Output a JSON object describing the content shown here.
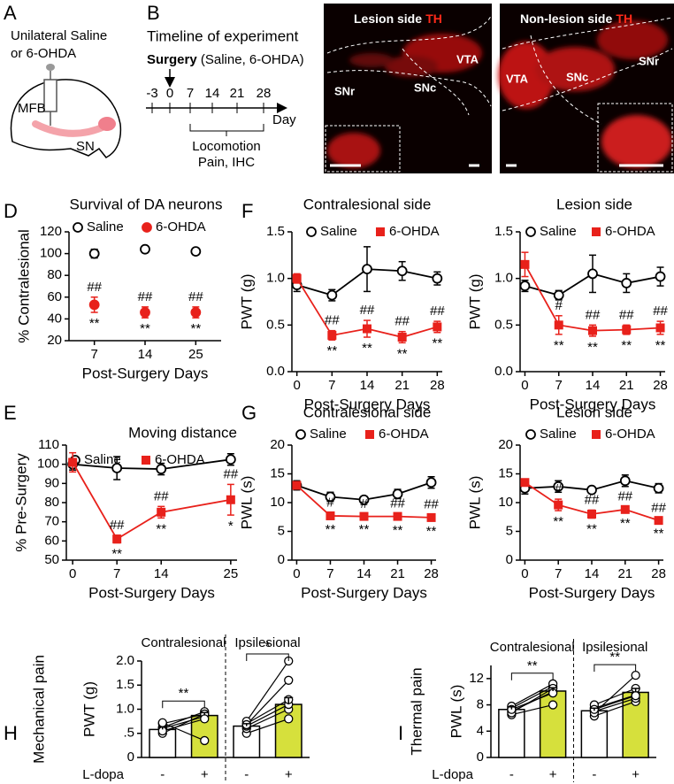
{
  "diagrams": {
    "a": {
      "panel": "A",
      "lines": [
        "Unilateral Saline",
        "or 6-OHDA"
      ],
      "labels": [
        "MFB",
        "SN"
      ]
    },
    "b": {
      "panel": "B",
      "title": "Timeline of experiment",
      "event_label": "Surgery",
      "event_detail": "(Saline, 6-OHDA)",
      "ticks": [
        "-3",
        "0",
        "7",
        "14",
        "21",
        "28"
      ],
      "axis_label": "Day",
      "phase_lines": [
        "Locomotion",
        "Pain, IHC"
      ]
    },
    "c": {
      "panel": "C",
      "images": [
        {
          "title": "Lesion side",
          "stain": "TH",
          "regions": [
            "SNr",
            "SNc",
            "VTA"
          ]
        },
        {
          "title": "Non-lesion side",
          "stain": "TH",
          "regions": [
            "VTA",
            "SNc",
            "SNr"
          ]
        }
      ]
    }
  },
  "chart_data": [
    {
      "type": "scatter",
      "panel": "D",
      "title": "Survival of DA neurons",
      "ylabel": "% Contralesional",
      "xlabel": "Post-Surgery Days",
      "categories": [
        "7",
        "14",
        "25"
      ],
      "ylim": [
        20,
        120
      ],
      "yticks": [
        20,
        40,
        60,
        80,
        100,
        120
      ],
      "series": [
        {
          "name": "Saline",
          "color": "#000000",
          "marker": "circle-open",
          "values": [
            100,
            104,
            102
          ],
          "errors": [
            4,
            3,
            3
          ]
        },
        {
          "name": "6-OHDA",
          "color": "#e8211b",
          "marker": "circle",
          "values": [
            53,
            46,
            46
          ],
          "errors": [
            7,
            5,
            5
          ],
          "upper_labels": [
            "##",
            "##",
            "##"
          ],
          "lower_labels": [
            "**",
            "**",
            "**"
          ]
        }
      ]
    },
    {
      "type": "line",
      "panel": "F",
      "title": "Contralesional side",
      "ylabel": "PWT (g)",
      "xlabel": "Post-Surgery Days",
      "x": [
        0,
        7,
        14,
        21,
        28
      ],
      "xlim": [
        -1,
        29
      ],
      "xticks": [
        0,
        7,
        14,
        21,
        28
      ],
      "ylim": [
        0,
        1.5
      ],
      "yticks": [
        {
          "value": 0,
          "label": "0.0"
        },
        0.5,
        {
          "value": 1,
          "label": "1.0"
        },
        1.5
      ],
      "series": [
        {
          "name": "Saline",
          "color": "#000000",
          "marker": "circle-open",
          "values": [
            0.93,
            0.82,
            1.1,
            1.08,
            1.0
          ],
          "errors": [
            0.07,
            0.06,
            0.24,
            0.1,
            0.07
          ]
        },
        {
          "name": "6-OHDA",
          "color": "#e8211b",
          "marker": "square",
          "values": [
            1.0,
            0.39,
            0.46,
            0.37,
            0.48
          ],
          "errors": [
            0.05,
            0.05,
            0.09,
            0.06,
            0.06
          ],
          "upper_labels": [
            null,
            "##",
            "##",
            "##",
            "##"
          ],
          "lower_labels": [
            null,
            "**",
            "**",
            "**",
            "**"
          ]
        }
      ]
    },
    {
      "type": "line",
      "title": "Lesion side",
      "ylabel": "PWT (g)",
      "xlabel": "Post-Surgery Days",
      "x": [
        0,
        7,
        14,
        21,
        28
      ],
      "xlim": [
        -1,
        29
      ],
      "xticks": [
        0,
        7,
        14,
        21,
        28
      ],
      "ylim": [
        0,
        1.5
      ],
      "yticks": [
        {
          "value": 0,
          "label": "0.0"
        },
        0.5,
        {
          "value": 1,
          "label": "1.0"
        },
        1.5
      ],
      "series": [
        {
          "name": "Saline",
          "color": "#000000",
          "marker": "circle-open",
          "values": [
            0.92,
            0.82,
            1.05,
            0.95,
            1.02
          ],
          "errors": [
            0.06,
            0.05,
            0.2,
            0.1,
            0.1
          ]
        },
        {
          "name": "6-OHDA",
          "color": "#e8211b",
          "marker": "square",
          "values": [
            1.15,
            0.5,
            0.44,
            0.45,
            0.47
          ],
          "errors": [
            0.13,
            0.1,
            0.06,
            0.05,
            0.07
          ],
          "upper_labels": [
            null,
            "#",
            "##",
            "##",
            "##"
          ],
          "lower_labels": [
            null,
            "**",
            "**",
            "**",
            "**"
          ]
        }
      ]
    },
    {
      "type": "line",
      "panel": "E",
      "title": "Moving distance",
      "ylabel": "% Pre-Surgery",
      "xlabel": "Post-Surgery Days",
      "x": [
        0,
        7,
        14,
        25
      ],
      "xlim": [
        -1,
        26
      ],
      "xticks": [
        0,
        7,
        14,
        25
      ],
      "ylim": [
        50,
        110
      ],
      "yticks": [
        50,
        60,
        70,
        80,
        90,
        100,
        110
      ],
      "series": [
        {
          "name": "Saline",
          "color": "#000000",
          "marker": "circle-open",
          "values": [
            100,
            98,
            97.5,
            102.5
          ],
          "errors": [
            3,
            6,
            3,
            3
          ]
        },
        {
          "name": "6-OHDA",
          "color": "#e8211b",
          "marker": "square",
          "values": [
            101,
            61,
            75,
            81.5
          ],
          "errors": [
            5,
            2,
            3,
            8
          ],
          "upper_labels": [
            null,
            "##",
            "##",
            "##"
          ],
          "lower_labels": [
            null,
            "**",
            "**",
            "*"
          ]
        }
      ]
    },
    {
      "type": "line",
      "panel": "G",
      "title": "Contralesional side",
      "ylabel": "PWL (s)",
      "xlabel": "Post-Surgery Days",
      "x": [
        0,
        7,
        14,
        21,
        28
      ],
      "xlim": [
        -1,
        29
      ],
      "xticks": [
        0,
        7,
        14,
        21,
        28
      ],
      "ylim": [
        0,
        20
      ],
      "yticks": [
        0,
        5,
        10,
        15,
        20
      ],
      "series": [
        {
          "name": "Saline",
          "color": "#000000",
          "marker": "circle-open",
          "values": [
            13,
            11,
            10.5,
            11.5,
            13.5
          ],
          "errors": [
            0.8,
            0.8,
            0.6,
            0.8,
            1
          ]
        },
        {
          "name": "6-OHDA",
          "color": "#e8211b",
          "marker": "square",
          "values": [
            13,
            7.7,
            7.6,
            7.6,
            7.4
          ],
          "errors": [
            0.6,
            0.5,
            0.4,
            0.5,
            0.5
          ],
          "upper_labels": [
            null,
            "#",
            "#",
            "##",
            "##"
          ],
          "lower_labels": [
            null,
            "**",
            "**",
            "**",
            "**"
          ]
        }
      ]
    },
    {
      "type": "line",
      "title": "Lesion side",
      "ylabel": "PWL (s)",
      "xlabel": "Post-Surgery Days",
      "x": [
        0,
        7,
        14,
        21,
        28
      ],
      "xlim": [
        -1,
        29
      ],
      "xticks": [
        0,
        7,
        14,
        21,
        28
      ],
      "ylim": [
        0,
        20
      ],
      "yticks": [
        0,
        5,
        10,
        15,
        20
      ],
      "series": [
        {
          "name": "Saline",
          "color": "#000000",
          "marker": "circle-open",
          "values": [
            12.5,
            12.8,
            12.2,
            13.8,
            12.5
          ],
          "errors": [
            1,
            1,
            0.6,
            1,
            0.8
          ]
        },
        {
          "name": "6-OHDA",
          "color": "#e8211b",
          "marker": "square",
          "values": [
            13.5,
            9.6,
            8,
            8.8,
            6.9
          ],
          "errors": [
            0.6,
            1,
            0.7,
            0.5,
            0.4
          ],
          "upper_labels": [
            null,
            "#",
            "##",
            "##",
            "##"
          ],
          "lower_labels": [
            null,
            "**",
            "**",
            "**",
            "**"
          ]
        }
      ]
    },
    {
      "type": "bar",
      "panel": "H",
      "title": "Mechanical pain",
      "ylabel": "PWT (g)",
      "xlabel": "L-dopa",
      "groups": [
        "Contralesional",
        "Ipsilesional"
      ],
      "categories": [
        "-",
        "+",
        "-",
        "+"
      ],
      "values": [
        0.58,
        0.87,
        0.65,
        1.1
      ],
      "errors": [
        0.05,
        0.06,
        0.05,
        0.14
      ],
      "colors": [
        "#ffffff",
        "#d6e03c",
        "#ffffff",
        "#d6e03c"
      ],
      "points": [
        [
          0.5,
          0.6,
          0.62,
          0.7,
          0.72,
          0.55
        ],
        [
          0.9,
          0.85,
          0.95,
          0.9,
          0.35,
          0.8
        ],
        [
          0.5,
          0.6,
          0.65,
          0.7,
          0.75,
          0.68
        ],
        [
          0.8,
          1.0,
          1.1,
          1.2,
          2.0,
          1.6
        ]
      ],
      "ylim": [
        0,
        2
      ],
      "yticks": [
        0,
        {
          "value": 0.5,
          "label": ".5"
        },
        {
          "value": 1,
          "label": "1.0"
        },
        1.5,
        {
          "value": 2,
          "label": "2.0"
        }
      ],
      "significance": [
        {
          "group": 0,
          "label": "**"
        },
        {
          "group": 1,
          "label": "*"
        }
      ]
    },
    {
      "type": "bar",
      "panel": "I",
      "title": "Thermal pain",
      "ylabel": "PWL (s)",
      "xlabel": "L-dopa",
      "groups": [
        "Contralesional",
        "Ipsilesional"
      ],
      "categories": [
        "-",
        "+",
        "-",
        "+"
      ],
      "values": [
        7.3,
        10.1,
        7.1,
        9.9
      ],
      "errors": [
        0.4,
        0.5,
        0.4,
        0.6
      ],
      "colors": [
        "#ffffff",
        "#d6e03c",
        "#ffffff",
        "#d6e03c"
      ],
      "points": [
        [
          6.5,
          7,
          7.5,
          7.8,
          6.8,
          7.3
        ],
        [
          8,
          10,
          10.8,
          11.2,
          10.5,
          9.8
        ],
        [
          6.3,
          7,
          7.5,
          8,
          6.8,
          7.3
        ],
        [
          8.5,
          9,
          9.5,
          10.5,
          12.5,
          9.4
        ]
      ],
      "ylim": [
        0,
        14
      ],
      "yticks": [
        0,
        4,
        8,
        12
      ],
      "significance": [
        {
          "group": 0,
          "label": "**"
        },
        {
          "group": 1,
          "label": "**"
        }
      ]
    }
  ]
}
